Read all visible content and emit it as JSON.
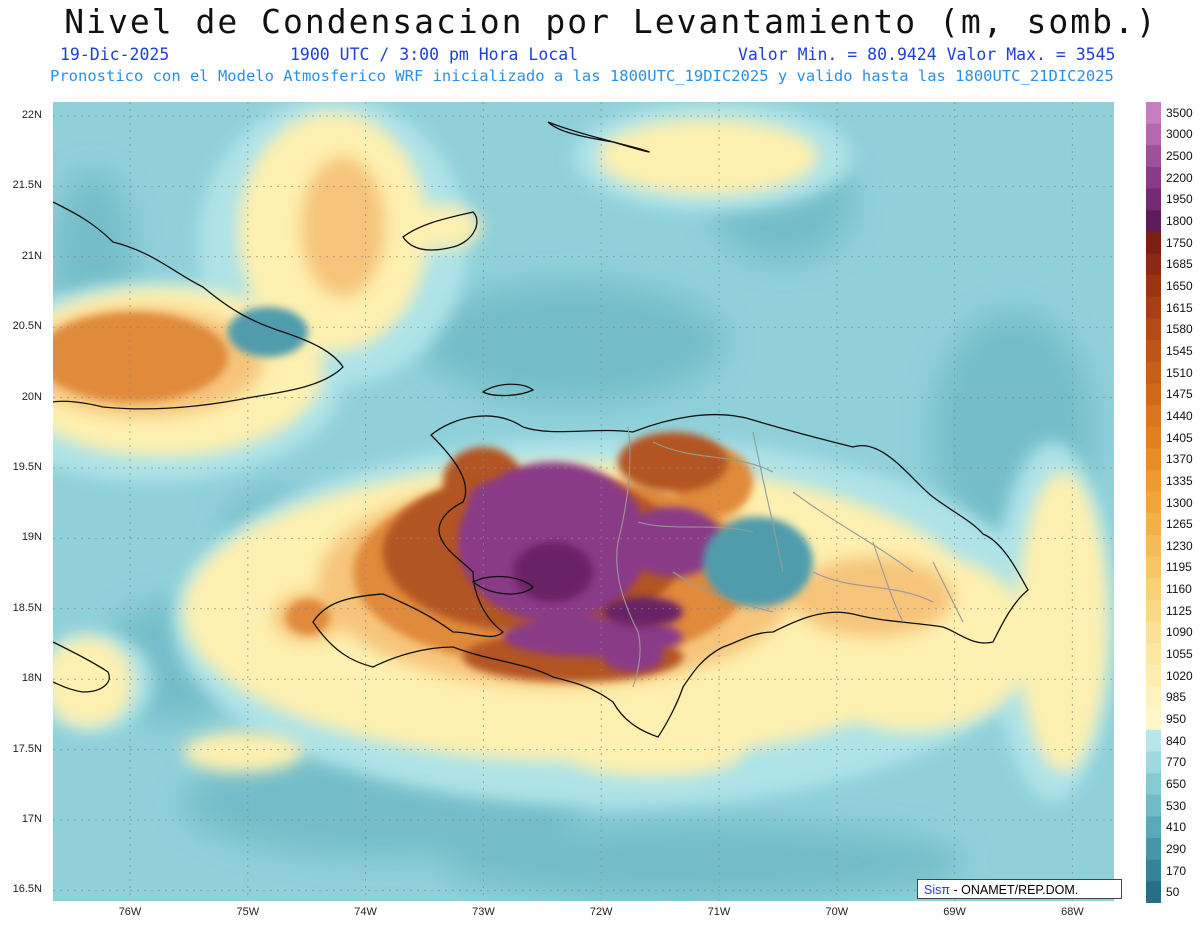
{
  "title": "Nivel de Condensacion por Levantamiento (m, somb.)",
  "header": {
    "date": "19-Dic-2025",
    "time": "1900 UTC / 3:00 pm Hora Local",
    "minmax": "Valor Min. = 80.9424  Valor Max. = 3545",
    "forecast": "Pronostico con el Modelo Atmosferico WRF inicializado a las 1800UTC_19DIC2025 y valido hasta las  1800UTC_21DIC2025"
  },
  "axes": {
    "lat_labels": [
      "22N",
      "21.5N",
      "21N",
      "20.5N",
      "20N",
      "19.5N",
      "19N",
      "18.5N",
      "18N",
      "17.5N",
      "17N",
      "16.5N"
    ],
    "lon_labels": [
      "76W",
      "75W",
      "74W",
      "73W",
      "72W",
      "71W",
      "70W",
      "69W",
      "68W"
    ]
  },
  "colorbar": {
    "labels": [
      "3500",
      "3000",
      "2500",
      "2200",
      "1950",
      "1800",
      "1750",
      "1685",
      "1650",
      "1615",
      "1580",
      "1545",
      "1510",
      "1475",
      "1440",
      "1405",
      "1370",
      "1335",
      "1300",
      "1265",
      "1230",
      "1195",
      "1160",
      "1125",
      "1090",
      "1055",
      "1020",
      "985",
      "950",
      "840",
      "770",
      "650",
      "530",
      "410",
      "290",
      "170",
      "50"
    ],
    "colors": [
      "#c77ec0",
      "#b766b0",
      "#a04f9b",
      "#8a3a88",
      "#732a72",
      "#5c1c5a",
      "#7a2012",
      "#8a2a14",
      "#9a3514",
      "#a63f16",
      "#b24a17",
      "#bd5518",
      "#c65f1a",
      "#cf6a1c",
      "#d8751e",
      "#e08121",
      "#e78d27",
      "#ed9a30",
      "#f1a63b",
      "#f4b14a",
      "#f6bb58",
      "#f8c567",
      "#f9cf77",
      "#fbd886",
      "#fce095",
      "#fde7a3",
      "#feedb0",
      "#fff2bd",
      "#fff6c8",
      "#b8e6ea",
      "#9fd9e0",
      "#86cad4",
      "#6fbac7",
      "#5aa9b9",
      "#4696aa",
      "#35839a",
      "#257088"
    ]
  },
  "map_colors": {
    "sea": "#8fd0d9",
    "sea_dark": "#74bdc8",
    "cyan_light": "#aee3e8",
    "yellow": "#fef0b0",
    "orange_light": "#f6c47a",
    "orange": "#e08a3a",
    "brown": "#b25420",
    "purple": "#8a3a88",
    "purple_dark": "#6a2266",
    "teal": "#4f9cad"
  },
  "credit": {
    "sis": "Sisπ",
    "rest": "- ONAMET/REP.DOM."
  }
}
